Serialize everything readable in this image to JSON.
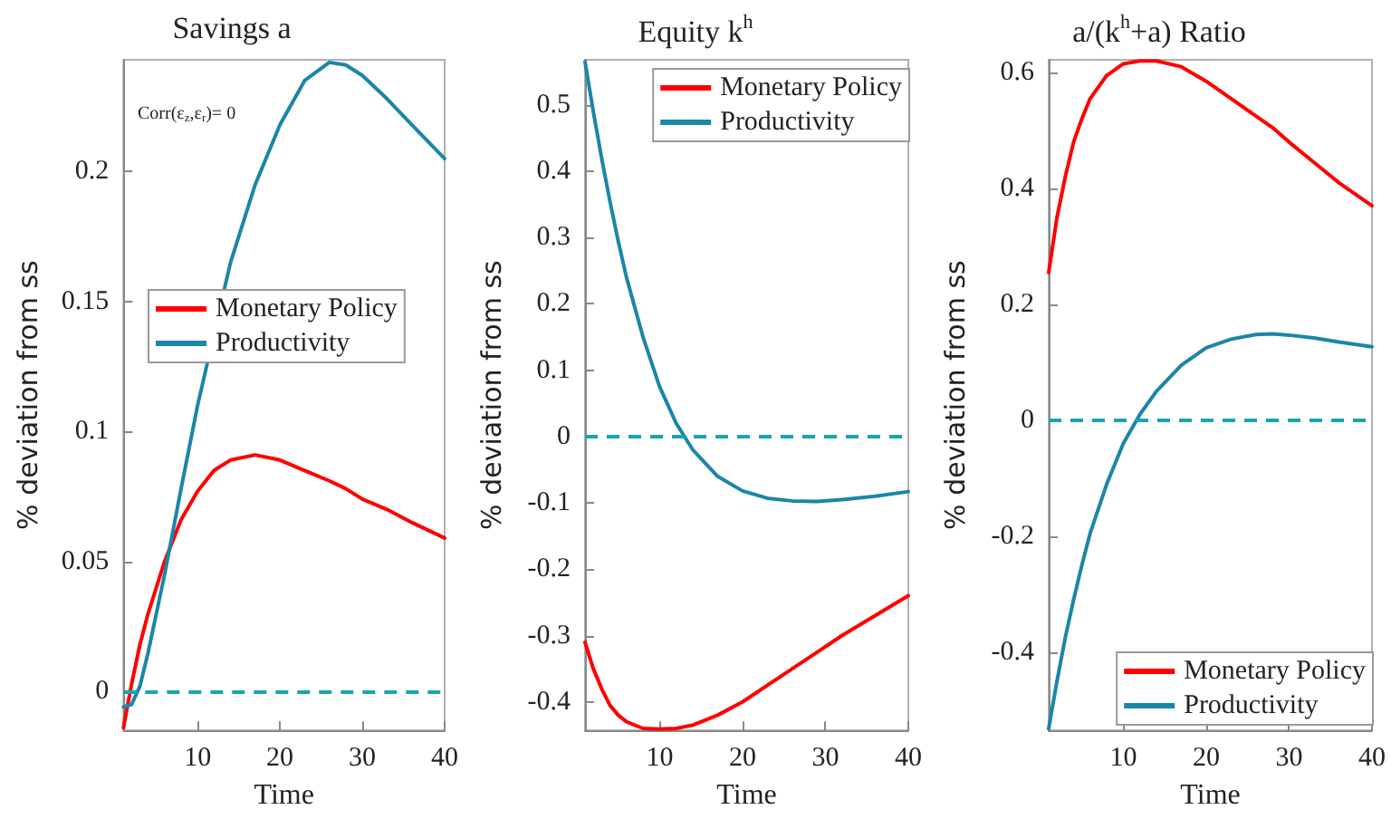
{
  "chart_data": [
    {
      "type": "line",
      "title": "Savings a",
      "xlabel": "Time",
      "ylabel": "% deviation from ss",
      "annotations": [
        "Corr(ε$_{z}$,ε$_{r}$)= 0"
      ],
      "xlim": [
        1,
        40
      ],
      "xticks": [
        10,
        20,
        30,
        40
      ],
      "ylim": [
        -0.015,
        0.243
      ],
      "yticks": [
        0,
        0.05,
        0.1,
        0.15,
        0.2
      ],
      "grid": false,
      "legend": "left",
      "line_style": "solid",
      "marker": "none",
      "x": [
        1,
        2,
        3,
        4,
        5,
        6,
        8,
        10,
        12,
        14,
        17,
        20,
        23,
        26,
        28,
        30,
        33,
        36,
        40
      ],
      "series": [
        {
          "name": "Monetary Policy",
          "color": "#ff0000",
          "values": [
            -0.014,
            0.003,
            0.018,
            0.03,
            0.04,
            0.05,
            0.066,
            0.077,
            0.085,
            0.089,
            0.091,
            0.089,
            0.085,
            0.081,
            0.078,
            0.074,
            0.07,
            0.065,
            0.059
          ]
        },
        {
          "name": "Productivity",
          "color": "#1a86a8",
          "x": [
            1,
            2,
            3,
            4,
            5,
            6,
            8,
            10,
            14,
            17,
            20,
            23,
            26,
            28,
            30,
            33,
            36,
            40
          ],
          "values": [
            -0.006,
            -0.005,
            0.002,
            0.015,
            0.03,
            0.045,
            0.078,
            0.11,
            0.165,
            0.195,
            0.218,
            0.235,
            0.242,
            0.241,
            0.237,
            0.228,
            0.218,
            0.205
          ]
        }
      ],
      "ref_lines": [
        {
          "axis": "y",
          "value": 0,
          "label": null,
          "color": "#1aa3b0",
          "line_style": "dashed"
        }
      ]
    },
    {
      "type": "line",
      "title": "Equity k$^{h}$",
      "xlabel": "Time",
      "ylabel": "% deviation from ss",
      "xlim": [
        1,
        40
      ],
      "xticks": [
        10,
        20,
        30,
        40
      ],
      "ylim": [
        -0.443,
        0.568
      ],
      "yticks": [
        -0.4,
        -0.3,
        -0.2,
        -0.1,
        0,
        0.1,
        0.2,
        0.3,
        0.4,
        0.5
      ],
      "grid": false,
      "legend": "top right",
      "line_style": "solid",
      "marker": "none",
      "x": [
        1,
        2,
        3,
        4,
        5,
        6,
        8,
        10,
        12,
        14,
        17,
        20,
        23,
        26,
        29,
        32,
        36,
        40
      ],
      "series": [
        {
          "name": "Monetary Policy",
          "color": "#ff0000",
          "values": [
            -0.31,
            -0.35,
            -0.38,
            -0.405,
            -0.42,
            -0.43,
            -0.44,
            -0.441,
            -0.44,
            -0.435,
            -0.42,
            -0.4,
            -0.375,
            -0.35,
            -0.325,
            -0.3,
            -0.27,
            -0.24
          ]
        },
        {
          "name": "Productivity",
          "color": "#1a86a8",
          "values": [
            0.565,
            0.49,
            0.42,
            0.355,
            0.295,
            0.24,
            0.15,
            0.075,
            0.02,
            -0.02,
            -0.06,
            -0.082,
            -0.093,
            -0.097,
            -0.098,
            -0.095,
            -0.09,
            -0.083
          ]
        }
      ],
      "ref_lines": [
        {
          "axis": "y",
          "value": 0,
          "label": null,
          "color": "#1aa3b0",
          "line_style": "dashed"
        }
      ]
    },
    {
      "type": "line",
      "title": "a/(k$^{h}$+a) Ratio",
      "xlabel": "Time",
      "ylabel": "% deviation from ss",
      "xlim": [
        1,
        40
      ],
      "xticks": [
        10,
        20,
        30,
        40
      ],
      "ylim": [
        -0.535,
        0.622
      ],
      "yticks": [
        -0.4,
        -0.2,
        0,
        0.2,
        0.4,
        0.6
      ],
      "grid": false,
      "legend": "bottom right",
      "line_style": "solid",
      "marker": "none",
      "x": [
        1,
        2,
        3,
        4,
        5,
        6,
        8,
        10,
        12,
        14,
        17,
        20,
        23,
        26,
        28,
        30,
        33,
        36,
        40
      ],
      "series": [
        {
          "name": "Monetary Policy",
          "color": "#ff0000",
          "values": [
            0.255,
            0.35,
            0.42,
            0.48,
            0.52,
            0.555,
            0.595,
            0.615,
            0.62,
            0.62,
            0.61,
            0.585,
            0.555,
            0.525,
            0.505,
            0.48,
            0.445,
            0.41,
            0.37
          ]
        },
        {
          "name": "Productivity",
          "color": "#1a86a8",
          "values": [
            -0.532,
            -0.45,
            -0.375,
            -0.31,
            -0.25,
            -0.195,
            -0.11,
            -0.04,
            0.01,
            0.05,
            0.095,
            0.125,
            0.14,
            0.148,
            0.149,
            0.147,
            0.142,
            0.135,
            0.127
          ]
        }
      ],
      "ref_lines": [
        {
          "axis": "y",
          "value": 0,
          "label": null,
          "color": "#1aa3b0",
          "line_style": "dashed"
        }
      ]
    }
  ]
}
